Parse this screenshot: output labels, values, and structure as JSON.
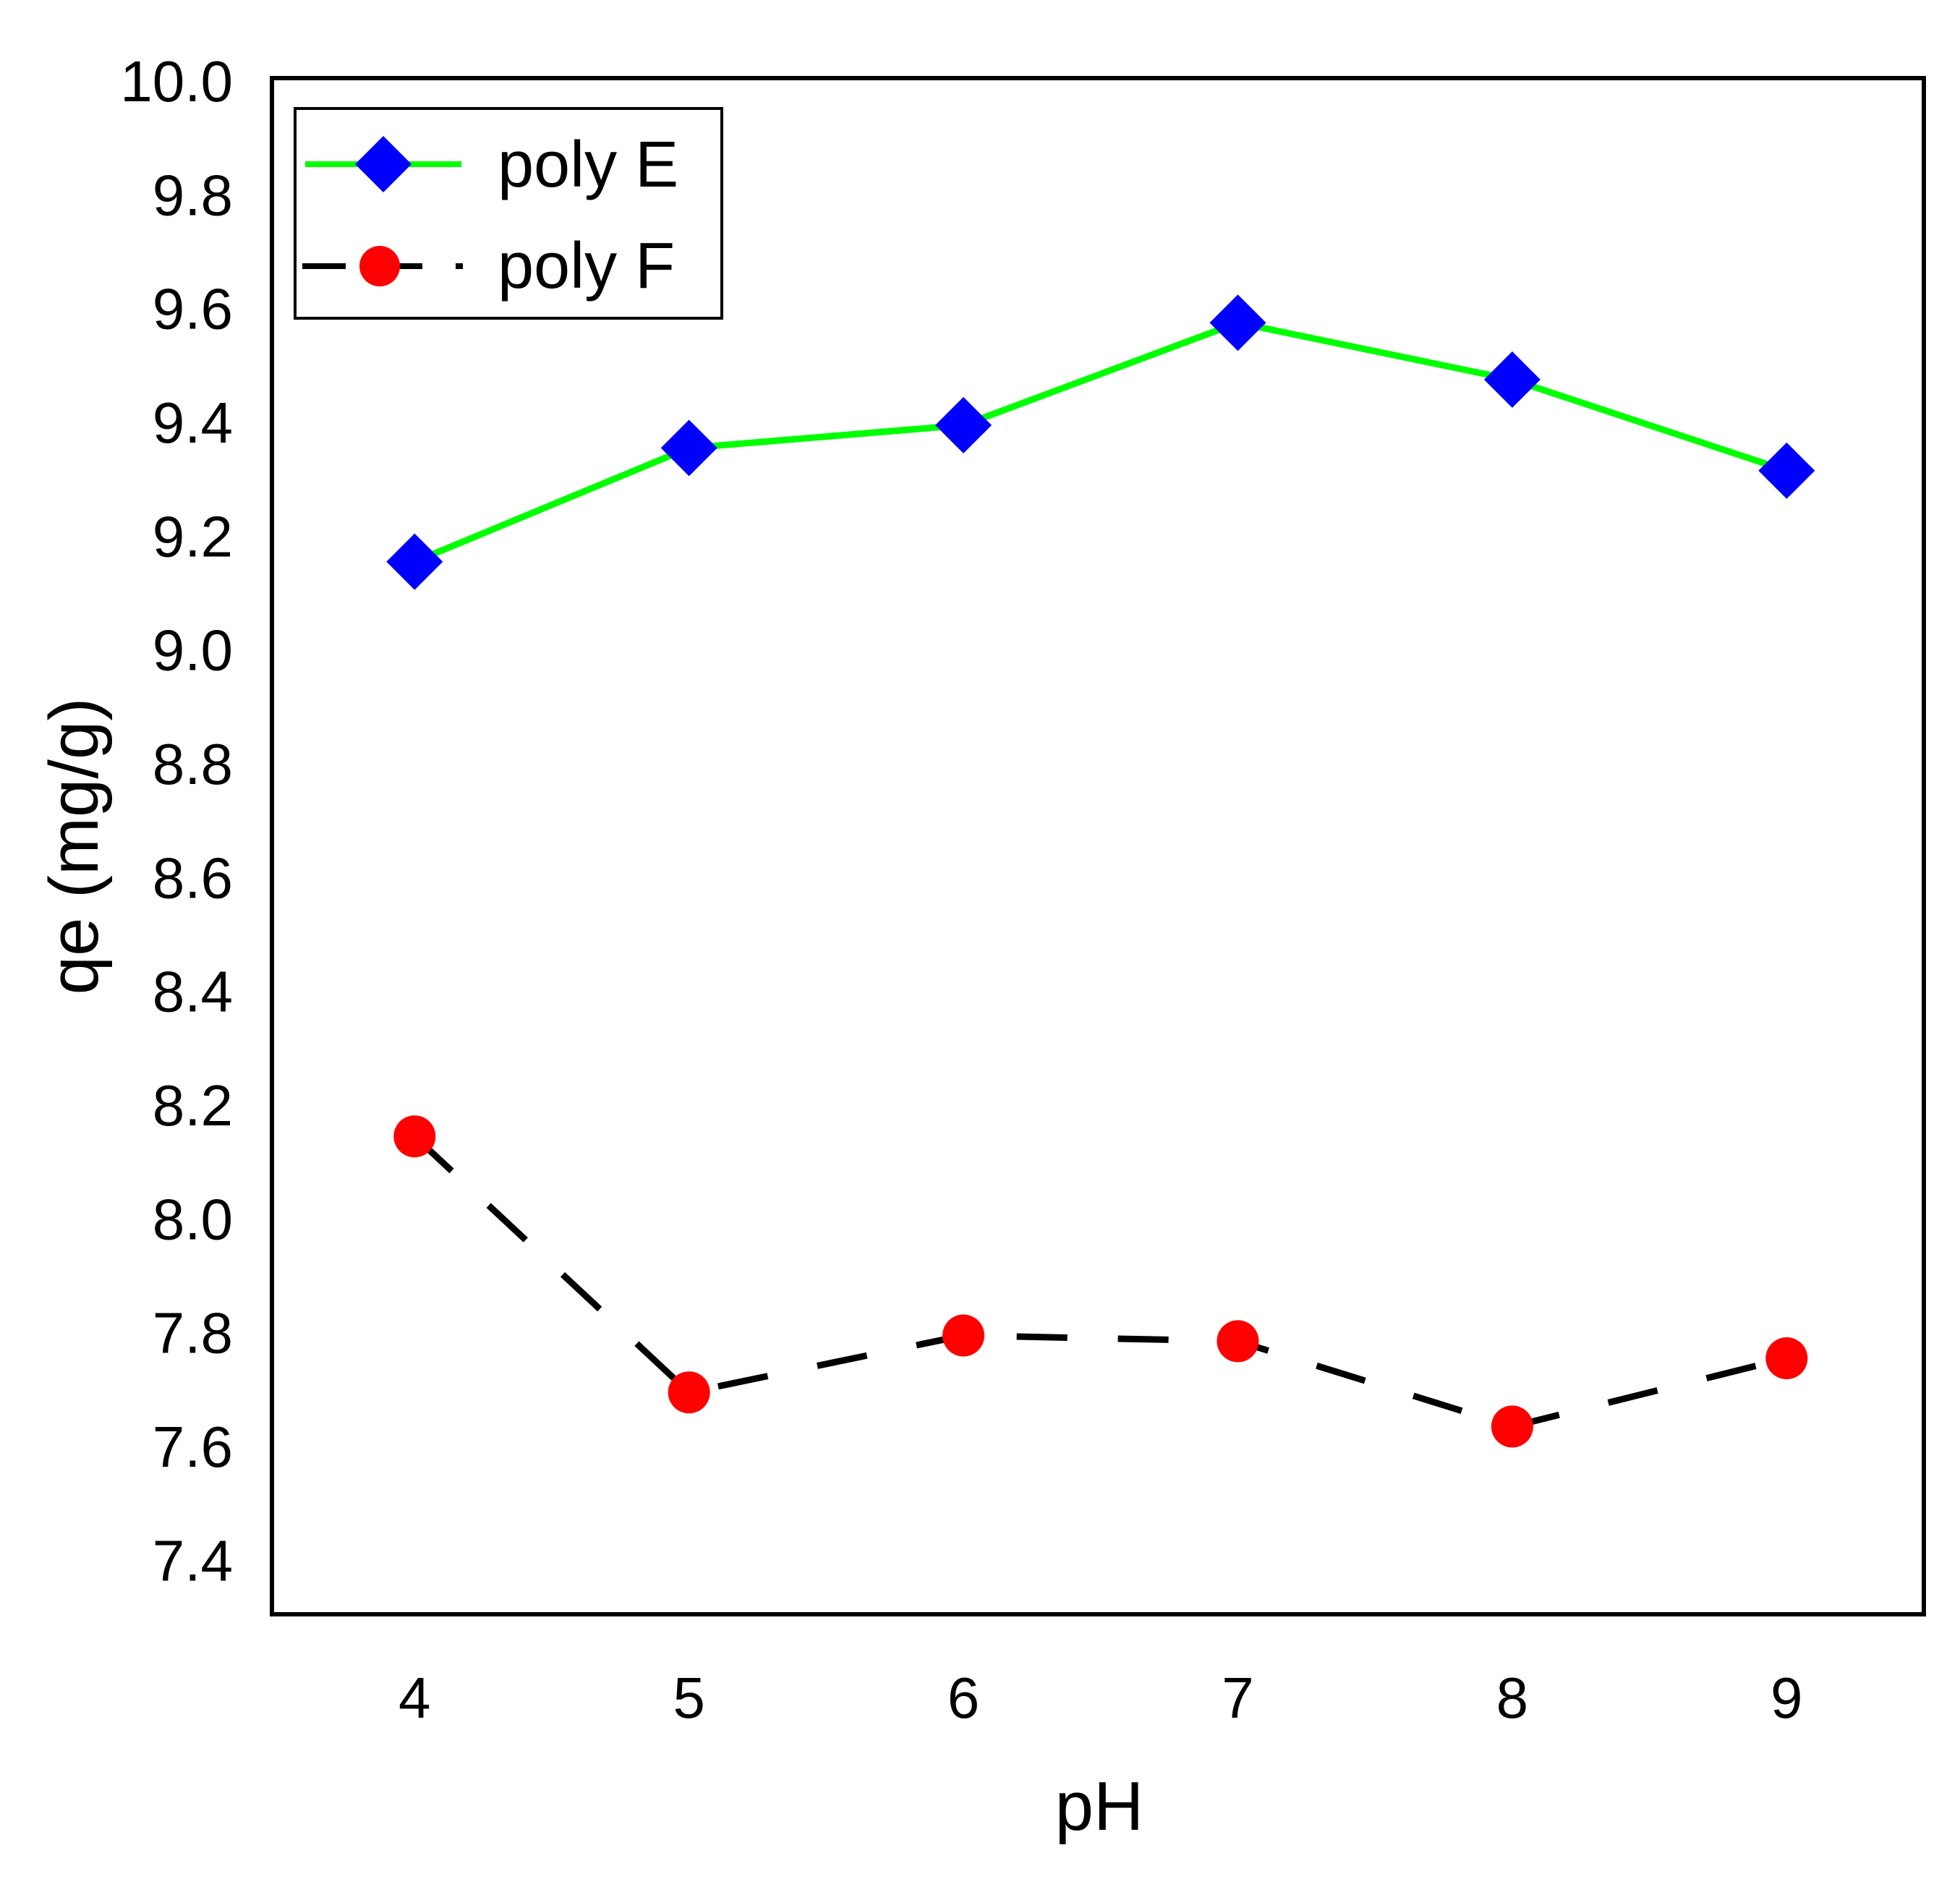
{
  "chart_data": {
    "type": "line",
    "title": "",
    "xlabel": "pH",
    "ylabel": "qe (mg/g)",
    "x": [
      4,
      5,
      6,
      7,
      8,
      9
    ],
    "x_tick_labels": [
      "4",
      "5",
      "6",
      "7",
      "8",
      "9"
    ],
    "y_tick_labels": [
      "7.4",
      "7.6",
      "7.8",
      "8.0",
      "8.2",
      "8.4",
      "8.6",
      "8.8",
      "9.0",
      "9.2",
      "9.4",
      "9.6",
      "9.8",
      "10.0"
    ],
    "xlim": [
      3.48,
      9.5
    ],
    "ylim": [
      7.3,
      10.0
    ],
    "grid": false,
    "legend_position": "top-left",
    "series": [
      {
        "name": "poly E",
        "values": [
          9.15,
          9.35,
          9.39,
          9.57,
          9.47,
          9.31
        ],
        "line_color": "#00ff00",
        "marker_color": "#0000ff",
        "marker": "diamond",
        "line_style": "solid"
      },
      {
        "name": "poly F",
        "values": [
          8.14,
          7.69,
          7.79,
          7.78,
          7.63,
          7.75
        ],
        "line_color": "#000000",
        "marker_color": "#ff0000",
        "marker": "circle",
        "line_style": "dashed"
      }
    ]
  }
}
